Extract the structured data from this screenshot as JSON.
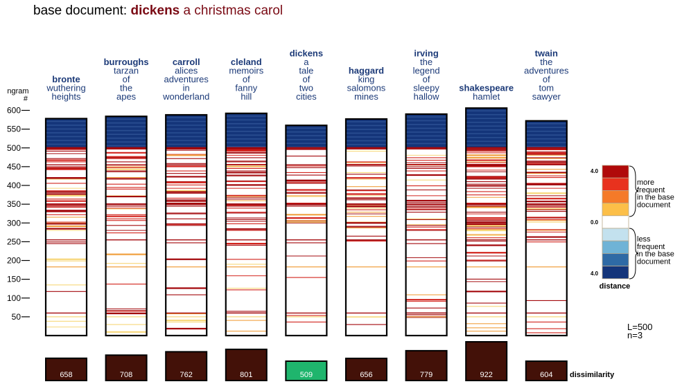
{
  "header": {
    "prefix": "base document:",
    "author": "dickens",
    "work": "a christmas carol"
  },
  "chart_data": {
    "type": "bar",
    "title": "base document: dickens a christmas carol",
    "ylabel": "ngram #",
    "yticks": [
      50,
      100,
      150,
      200,
      250,
      300,
      350,
      400,
      450,
      500,
      550,
      600
    ],
    "ylim": [
      0,
      600
    ],
    "authors": [
      {
        "author": "bronte",
        "title_lines": [
          "wuthering",
          "heights"
        ],
        "ngrams": 578,
        "dissimilarity": 658
      },
      {
        "author": "burroughs",
        "title_lines": [
          "tarzan",
          "of",
          "the",
          "apes"
        ],
        "ngrams": 584,
        "dissimilarity": 708
      },
      {
        "author": "carroll",
        "title_lines": [
          "alices",
          "adventures",
          "in",
          "wonderland"
        ],
        "ngrams": 588,
        "dissimilarity": 762
      },
      {
        "author": "cleland",
        "title_lines": [
          "memoirs",
          "of",
          "fanny",
          "hill"
        ],
        "ngrams": 592,
        "dissimilarity": 801
      },
      {
        "author": "dickens",
        "title_lines": [
          "a",
          "tale",
          "of",
          "two",
          "cities"
        ],
        "ngrams": 560,
        "dissimilarity": 509,
        "highlight": true
      },
      {
        "author": "haggard",
        "title_lines": [
          "king",
          "salomons",
          "mines"
        ],
        "ngrams": 577,
        "dissimilarity": 656
      },
      {
        "author": "irving",
        "title_lines": [
          "the",
          "legend",
          "of",
          "sleepy",
          "hallow"
        ],
        "ngrams": 590,
        "dissimilarity": 779
      },
      {
        "author": "shakespeare",
        "title_lines": [
          "hamlet"
        ],
        "ngrams": 606,
        "dissimilarity": 922
      },
      {
        "author": "twain",
        "title_lines": [
          "the",
          "adventures",
          "of",
          "tom",
          "sawyer"
        ],
        "ngrams": 572,
        "dissimilarity": 604
      }
    ],
    "dissimilarity_label": "dissimilarity",
    "legend": {
      "placement": "right",
      "top_value": "4.0",
      "mid_value": "0.0",
      "bottom_value": "4.0",
      "more_label_lines": [
        "more",
        "frequent",
        "in the base",
        "document"
      ],
      "less_label_lines": [
        "less",
        "frequent",
        "in the base",
        "document"
      ],
      "caption": "distance",
      "swatches": [
        "#b00a0a",
        "#e8321e",
        "#f57a28",
        "#fcbf48",
        "#ffffff",
        "#c3e1ee",
        "#6fb3d6",
        "#2e6aa5",
        "#14357a"
      ]
    },
    "params": {
      "L": "L=500",
      "n": "n=3"
    }
  },
  "colors": {
    "navy": "#14357a",
    "navy_light": "#2a4e91",
    "red_dark": "#a3080c",
    "red": "#d2241e",
    "orange": "#f0a040",
    "yellow": "#f7d77a",
    "label_blue": "#1c3a78",
    "diss_brown": "#431108",
    "diss_green": "#1fb56d"
  }
}
